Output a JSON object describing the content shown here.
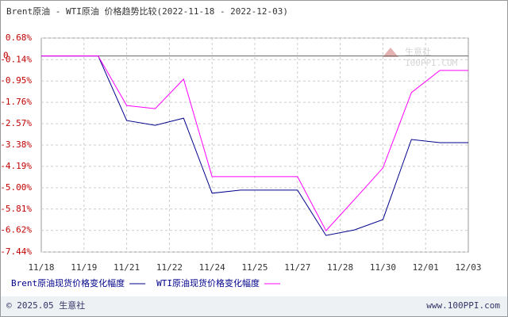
{
  "chart_data": {
    "type": "line",
    "title": "Brent原油 - WTI原油 价格趋势比较(2022-11-18 - 2022-12-03)",
    "xticks": [
      "11/18",
      "11/19",
      "11/21",
      "11/22",
      "11/24",
      "11/25",
      "11/27",
      "11/28",
      "11/30",
      "12/01",
      "12/03"
    ],
    "ylim": [
      -7.44,
      0.68
    ],
    "yticks": [
      {
        "value": 0.68,
        "label": "0.68%"
      },
      {
        "value": -0.14,
        "label": "-0.14%"
      },
      {
        "value": -0.95,
        "label": "-0.95%"
      },
      {
        "value": -1.76,
        "label": "-1.76%"
      },
      {
        "value": -2.57,
        "label": "-2.57%"
      },
      {
        "value": -3.38,
        "label": "-3.38%"
      },
      {
        "value": -4.19,
        "label": "-4.19%"
      },
      {
        "value": -5.0,
        "label": "-5.00%"
      },
      {
        "value": -5.81,
        "label": "-5.81%"
      },
      {
        "value": -6.62,
        "label": "-6.62%"
      },
      {
        "value": -7.44,
        "label": "-7.44%"
      }
    ],
    "baseline": {
      "value": 0,
      "label": "0"
    },
    "grid": true,
    "series": [
      {
        "name": "Brent原油现货价格变化幅度",
        "color": "#00008b",
        "values": [
          0,
          0,
          0,
          -2.45,
          -2.63,
          -2.36,
          -5.21,
          -5.09,
          -5.09,
          -5.09,
          -6.81,
          -6.6,
          -6.21,
          -3.17,
          -3.29,
          -3.29
        ]
      },
      {
        "name": "WTI原油现货价格变化幅度",
        "color": "#ff00ff",
        "values": [
          0,
          0,
          0,
          -1.88,
          -2.0,
          -0.88,
          -4.58,
          -4.58,
          -4.58,
          -4.58,
          -6.63,
          -5.45,
          -4.25,
          -1.39,
          -0.55,
          -0.55
        ]
      }
    ]
  },
  "watermark": {
    "name": "生意社",
    "site": "100PPI.COM"
  },
  "footer": {
    "left": "© 2025.05 生意社",
    "right": "www.100PPI.com"
  }
}
